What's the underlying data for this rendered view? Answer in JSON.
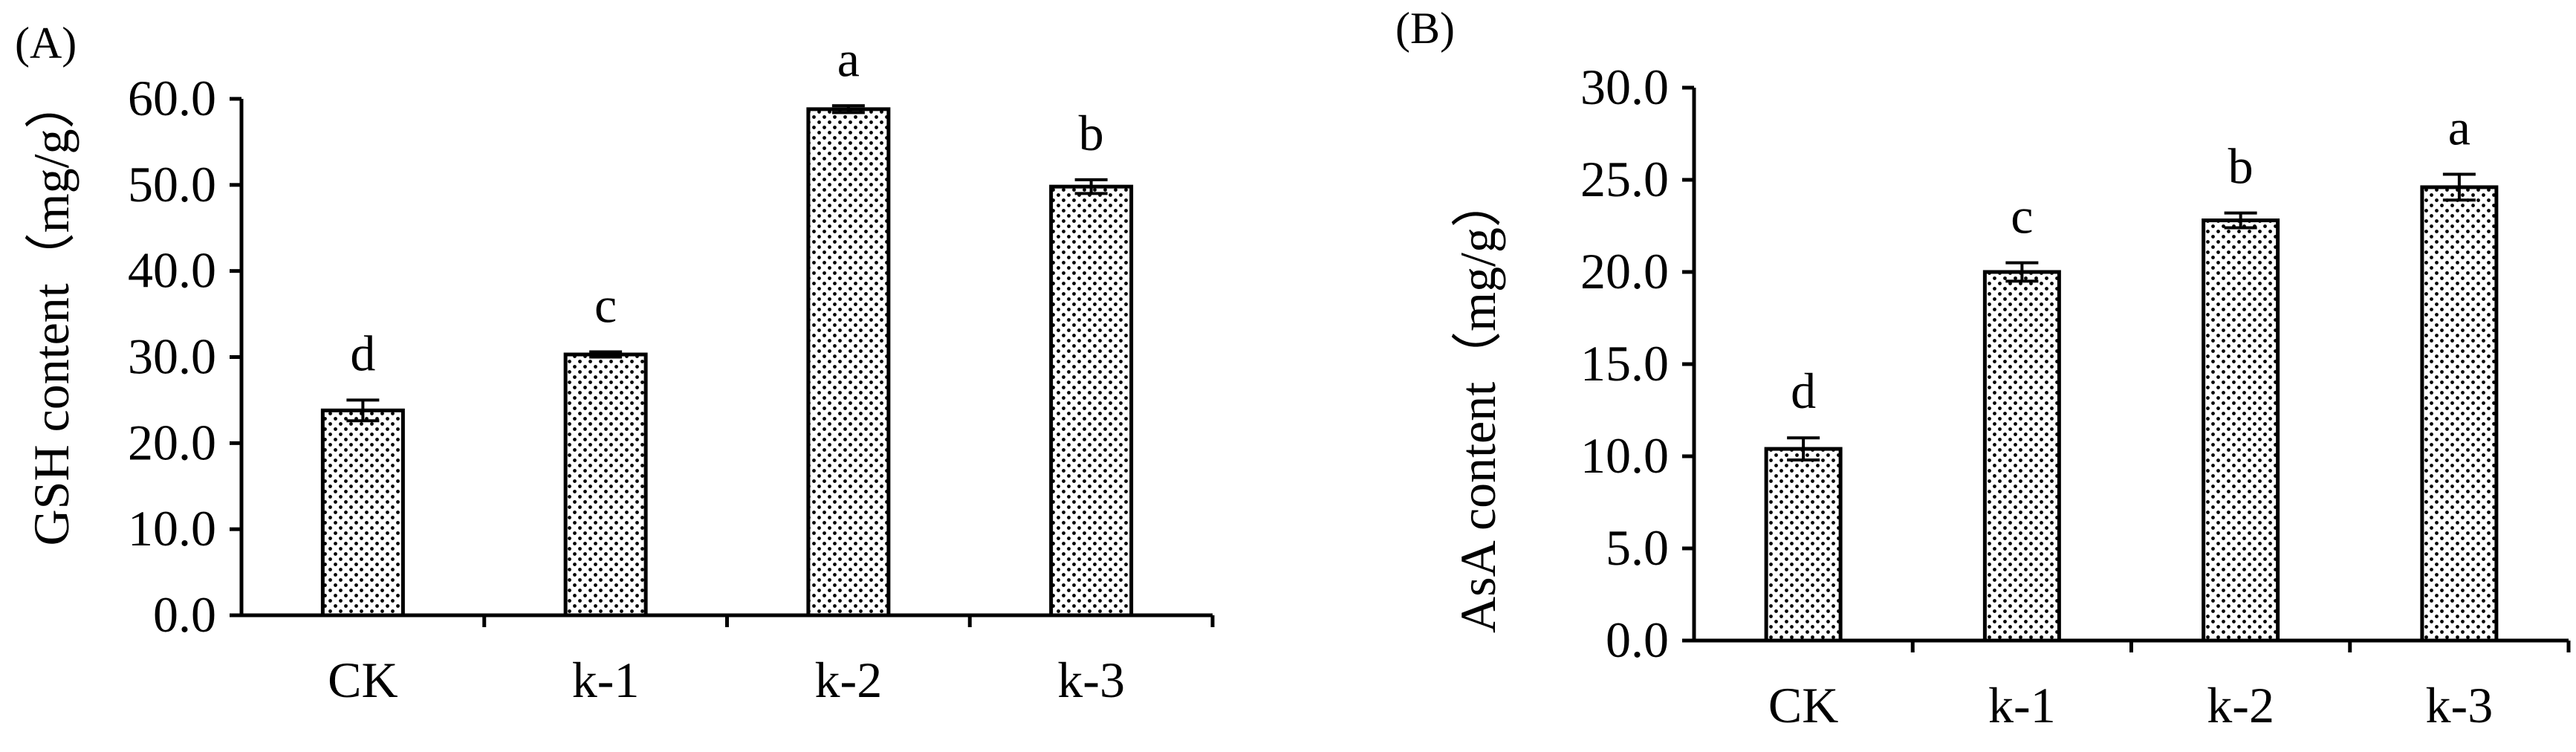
{
  "chart_data": [
    {
      "panel_label": "(A)",
      "type": "bar",
      "ylabel": "GSH content（mg/g）",
      "categories": [
        "CK",
        "k-1",
        "k-2",
        "k-3"
      ],
      "values": [
        23.8,
        30.3,
        58.8,
        49.8
      ],
      "errors": [
        1.2,
        0.3,
        0.4,
        0.8
      ],
      "significance": [
        "d",
        "c",
        "a",
        "b"
      ],
      "ylim": [
        0,
        60
      ],
      "yticks": [
        "0.0",
        "10.0",
        "20.0",
        "30.0",
        "40.0",
        "50.0",
        "60.0"
      ],
      "ytick_values": [
        0,
        10,
        20,
        30,
        40,
        50,
        60
      ],
      "bar_pattern": "dotted",
      "grid": false
    },
    {
      "panel_label": "(B)",
      "type": "bar",
      "ylabel": "AsA content（mg/g）",
      "categories": [
        "CK",
        "k-1",
        "k-2",
        "k-3"
      ],
      "values": [
        10.4,
        20.0,
        22.8,
        24.6
      ],
      "errors": [
        0.6,
        0.5,
        0.4,
        0.7
      ],
      "significance": [
        "d",
        "c",
        "b",
        "a"
      ],
      "ylim": [
        0,
        30
      ],
      "yticks": [
        "0.0",
        "5.0",
        "10.0",
        "15.0",
        "20.0",
        "25.0",
        "30.0"
      ],
      "ytick_values": [
        0,
        5,
        10,
        15,
        20,
        25,
        30
      ],
      "bar_pattern": "dotted",
      "grid": false
    }
  ]
}
